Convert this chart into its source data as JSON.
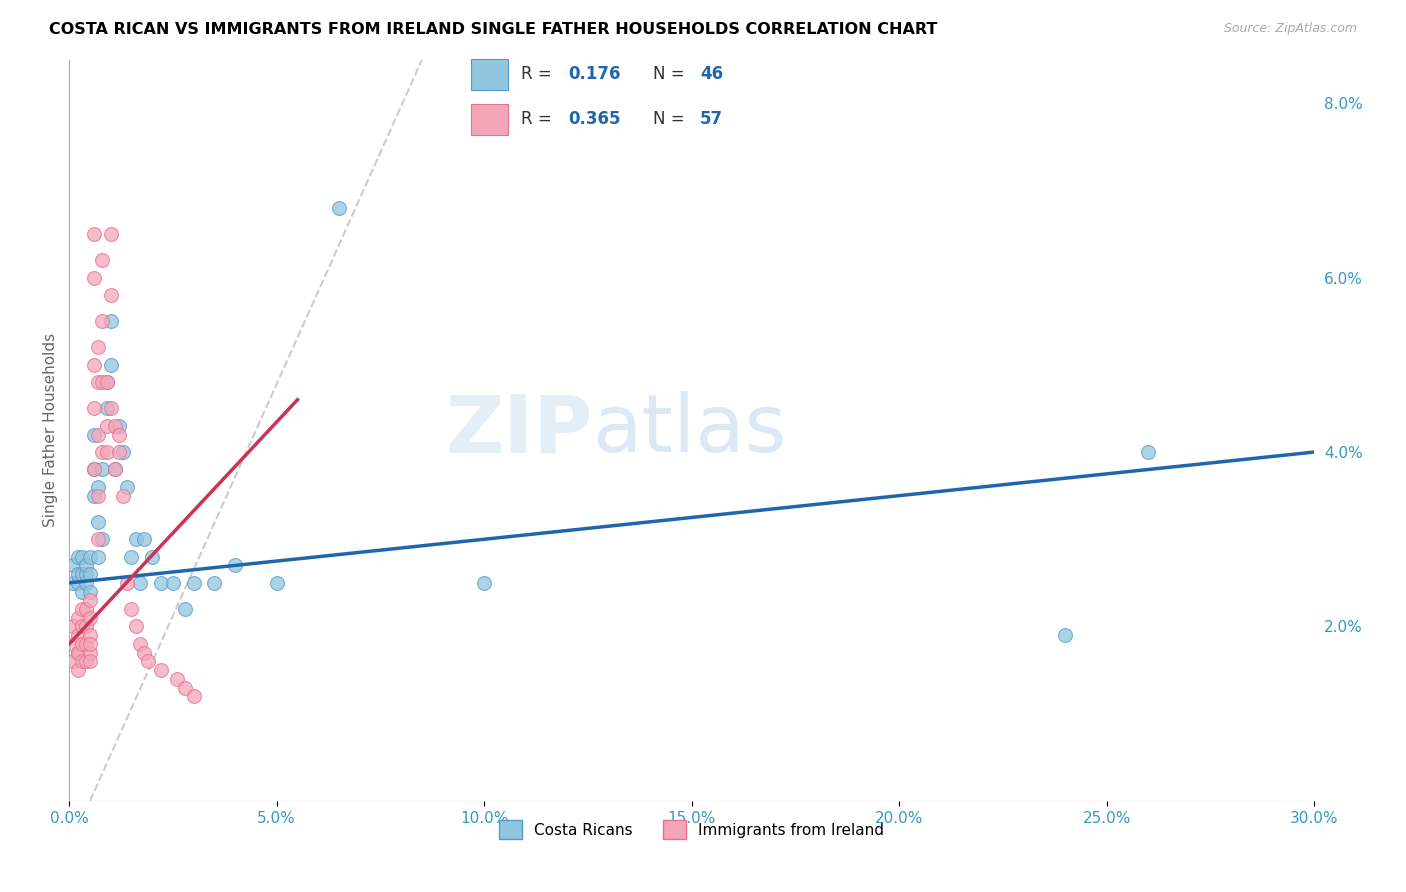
{
  "title": "COSTA RICAN VS IMMIGRANTS FROM IRELAND SINGLE FATHER HOUSEHOLDS CORRELATION CHART",
  "source": "Source: ZipAtlas.com",
  "ylabel": "Single Father Households",
  "xlim": [
    0.0,
    0.3
  ],
  "ylim": [
    0.0,
    0.085
  ],
  "xticks": [
    0.0,
    0.05,
    0.1,
    0.15,
    0.2,
    0.25,
    0.3
  ],
  "xticklabels": [
    "0.0%",
    "5.0%",
    "10.0%",
    "15.0%",
    "20.0%",
    "25.0%",
    "30.0%"
  ],
  "yticks_right": [
    0.02,
    0.04,
    0.06,
    0.08
  ],
  "yticklabels_right": [
    "2.0%",
    "4.0%",
    "6.0%",
    "8.0%"
  ],
  "blue_color": "#92c5de",
  "pink_color": "#f4a6b8",
  "blue_edge": "#5599cc",
  "pink_edge": "#e87090",
  "blue_line_color": "#2166ac",
  "pink_line_color": "#cc3355",
  "watermark_zip": "ZIP",
  "watermark_atlas": "atlas",
  "blue_scatter_x": [
    0.001,
    0.001,
    0.002,
    0.002,
    0.002,
    0.003,
    0.003,
    0.003,
    0.004,
    0.004,
    0.004,
    0.005,
    0.005,
    0.005,
    0.006,
    0.006,
    0.006,
    0.007,
    0.007,
    0.007,
    0.008,
    0.008,
    0.009,
    0.009,
    0.01,
    0.01,
    0.011,
    0.012,
    0.013,
    0.014,
    0.015,
    0.016,
    0.017,
    0.018,
    0.02,
    0.022,
    0.025,
    0.028,
    0.03,
    0.035,
    0.04,
    0.05,
    0.065,
    0.1,
    0.24,
    0.26
  ],
  "blue_scatter_y": [
    0.025,
    0.027,
    0.025,
    0.026,
    0.028,
    0.024,
    0.026,
    0.028,
    0.025,
    0.026,
    0.027,
    0.024,
    0.026,
    0.028,
    0.035,
    0.038,
    0.042,
    0.028,
    0.032,
    0.036,
    0.03,
    0.038,
    0.045,
    0.048,
    0.055,
    0.05,
    0.038,
    0.043,
    0.04,
    0.036,
    0.028,
    0.03,
    0.025,
    0.03,
    0.028,
    0.025,
    0.025,
    0.022,
    0.025,
    0.025,
    0.027,
    0.025,
    0.068,
    0.025,
    0.019,
    0.04
  ],
  "pink_scatter_x": [
    0.001,
    0.001,
    0.001,
    0.002,
    0.002,
    0.002,
    0.002,
    0.002,
    0.003,
    0.003,
    0.003,
    0.003,
    0.004,
    0.004,
    0.004,
    0.004,
    0.005,
    0.005,
    0.005,
    0.005,
    0.005,
    0.005,
    0.006,
    0.006,
    0.006,
    0.006,
    0.006,
    0.007,
    0.007,
    0.007,
    0.007,
    0.007,
    0.008,
    0.008,
    0.008,
    0.008,
    0.009,
    0.009,
    0.009,
    0.01,
    0.01,
    0.01,
    0.011,
    0.011,
    0.012,
    0.012,
    0.013,
    0.014,
    0.015,
    0.016,
    0.017,
    0.018,
    0.019,
    0.022,
    0.026,
    0.028,
    0.03
  ],
  "pink_scatter_y": [
    0.016,
    0.018,
    0.02,
    0.017,
    0.019,
    0.021,
    0.015,
    0.017,
    0.016,
    0.018,
    0.02,
    0.022,
    0.016,
    0.018,
    0.02,
    0.022,
    0.017,
    0.019,
    0.021,
    0.023,
    0.016,
    0.018,
    0.038,
    0.045,
    0.05,
    0.06,
    0.065,
    0.042,
    0.048,
    0.052,
    0.03,
    0.035,
    0.04,
    0.048,
    0.055,
    0.062,
    0.04,
    0.043,
    0.048,
    0.045,
    0.058,
    0.065,
    0.038,
    0.043,
    0.04,
    0.042,
    0.035,
    0.025,
    0.022,
    0.02,
    0.018,
    0.017,
    0.016,
    0.015,
    0.014,
    0.013,
    0.012
  ]
}
